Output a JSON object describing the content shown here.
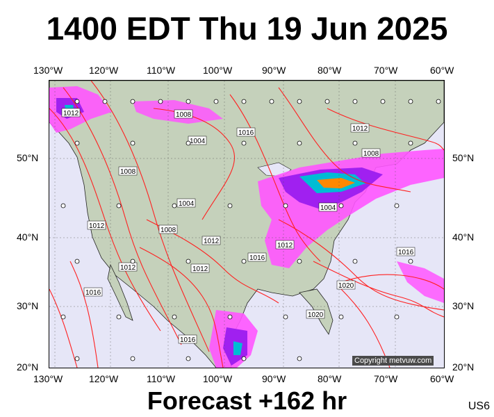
{
  "title": "1400 EDT Thu 19 Jun 2025",
  "footer": "Forecast +162 hr",
  "code": "US6",
  "copyright": "Copyright metvuw.com",
  "lon_ticks": [
    "130°W",
    "120°W",
    "110°W",
    "100°W",
    "90°W",
    "80°W",
    "70°W",
    "60°W"
  ],
  "lat_ticks": [
    "50°N",
    "40°N",
    "30°N",
    "20°N"
  ],
  "isobar_labels": [
    "1012",
    "1008",
    "1004",
    "1016",
    "1012",
    "1008",
    "1008",
    "1004",
    "1012",
    "1004",
    "1008",
    "1012",
    "1012",
    "1016",
    "1012",
    "1012",
    "1016",
    "1020",
    "1016",
    "1020",
    "1016"
  ],
  "colors": {
    "ocean": "#e6e6f7",
    "land": "#c5d1bb",
    "isobar": "#ff2020",
    "rain_light": "#ff55ff",
    "rain_mid": "#a020f0",
    "rain_heavy": "#00bcd4"
  }
}
